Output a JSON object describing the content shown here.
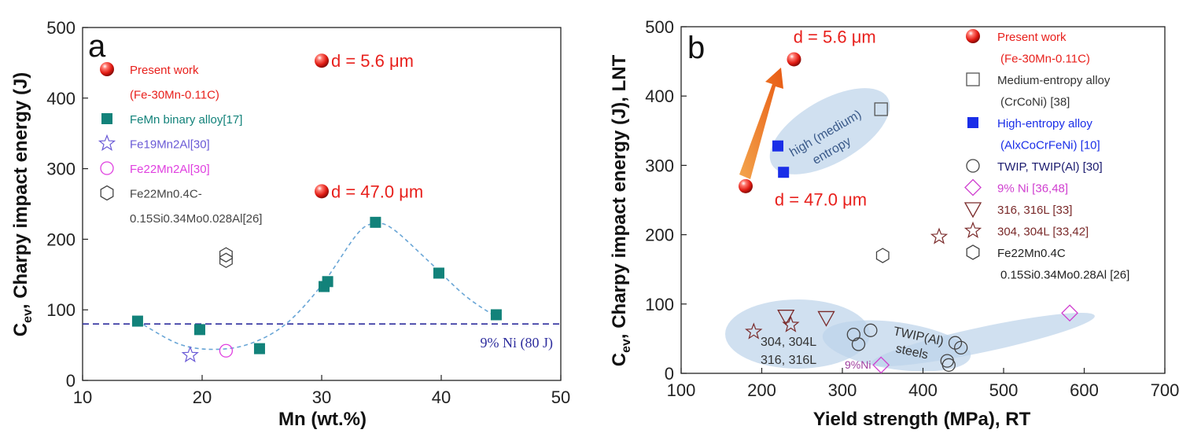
{
  "chart_data": [
    {
      "panel": "a",
      "type": "scatter",
      "xlabel": "Mn (wt.%)",
      "ylabel_main": "C",
      "ylabel_sub": "ev",
      "ylabel_rest": ", Charpy impact energy (J)",
      "xlim": [
        10,
        50
      ],
      "ylim": [
        0,
        500
      ],
      "xticks": [
        "10",
        "20",
        "30",
        "40",
        "50"
      ],
      "yticks": [
        "0",
        "100",
        "200",
        "300",
        "400",
        "500"
      ],
      "reference_line": {
        "y": 80,
        "label": "9% Ni (80 J)",
        "color": "#2e2e9e"
      },
      "fit_curve": [
        [
          14.6,
          84
        ],
        [
          18,
          52
        ],
        [
          21,
          44
        ],
        [
          24,
          52
        ],
        [
          27,
          80
        ],
        [
          30,
          135
        ],
        [
          33,
          208
        ],
        [
          34.5,
          222
        ],
        [
          36,
          214
        ],
        [
          39,
          168
        ],
        [
          42,
          120
        ],
        [
          44.6,
          90
        ]
      ],
      "series": [
        {
          "name": "Present work",
          "name2": "(Fe-30Mn-0.11C)",
          "marker": "sphere",
          "color": "#e8201c",
          "points": [
            [
              30,
              453
            ],
            [
              30,
              268
            ]
          ]
        },
        {
          "name": "FeMn binary alloy[17]",
          "marker": "square",
          "color": "#12827a",
          "points": [
            [
              14.6,
              84
            ],
            [
              19.8,
              72
            ],
            [
              24.8,
              45
            ],
            [
              30.2,
              133
            ],
            [
              30.5,
              140
            ],
            [
              34.5,
              224
            ],
            [
              39.8,
              152
            ],
            [
              44.6,
              93
            ]
          ]
        },
        {
          "name": "Fe19Mn2Al[30]",
          "marker": "star",
          "color": "#6a5ad6",
          "points": [
            [
              19,
              36
            ]
          ]
        },
        {
          "name": "Fe22Mn2Al[30]",
          "marker": "circle",
          "color": "#e040e0",
          "points": [
            [
              22,
              42
            ]
          ]
        },
        {
          "name": "Fe22Mn0.4C-",
          "name2": "0.15Si0.34Mo0.028Al[26]",
          "marker": "hexagon",
          "color": "#444444",
          "points": [
            [
              22,
              178
            ],
            [
              22,
              170
            ]
          ]
        }
      ],
      "annotations": [
        {
          "text": "d = 5.6 μm",
          "x": 30,
          "y": 453
        },
        {
          "text": "d = 47.0 μm",
          "x": 30,
          "y": 268
        }
      ]
    },
    {
      "panel": "b",
      "type": "scatter",
      "xlabel": "Yield strength (MPa), RT",
      "ylabel_main": "C",
      "ylabel_sub": "ev",
      "ylabel_rest": ", Charpy impact energy (J), LNT",
      "xlim": [
        100,
        700
      ],
      "ylim": [
        0,
        500
      ],
      "xticks": [
        "100",
        "200",
        "300",
        "400",
        "500",
        "600",
        "700"
      ],
      "yticks": [
        "0",
        "100",
        "200",
        "300",
        "400",
        "500"
      ],
      "series": [
        {
          "name": "Present work",
          "name2": "(Fe-30Mn-0.11C)",
          "marker": "sphere",
          "color": "#e8201c",
          "text_color": "#e8201c",
          "points": [
            [
              240,
              453
            ],
            [
              180,
              270
            ]
          ]
        },
        {
          "name": "Medium-entropy alloy",
          "name2": "(CrCoNi) [38]",
          "marker": "open-square",
          "color": "#555555",
          "text_color": "#333333",
          "points": [
            [
              348,
              381
            ]
          ]
        },
        {
          "name": "High-entropy alloy",
          "name2": "(AlxCoCrFeNi) [10]",
          "marker": "square",
          "color": "#1a2ee8",
          "text_color": "#1a2ee8",
          "points": [
            [
              220,
              328
            ],
            [
              227,
              290
            ]
          ]
        },
        {
          "name": "TWIP, TWIP(Al) [30]",
          "marker": "circle",
          "color": "#444444",
          "text_color": "#1a1a6e",
          "points": [
            [
              314,
              56
            ],
            [
              320,
              42
            ],
            [
              335,
              62
            ],
            [
              430,
              18
            ],
            [
              432,
              12
            ],
            [
              440,
              44
            ],
            [
              447,
              37
            ]
          ]
        },
        {
          "name": "9% Ni [36,48]",
          "marker": "diamond",
          "color": "#d040d0",
          "text_color": "#d040d0",
          "points": [
            [
              582,
              87
            ],
            [
              348,
              12
            ]
          ]
        },
        {
          "name": "316, 316L [33]",
          "marker": "triangle-down",
          "color": "#7a2a2a",
          "text_color": "#7a2a2a",
          "points": [
            [
              230,
              82
            ],
            [
              280,
              80
            ]
          ]
        },
        {
          "name": "304, 304L [33,42]",
          "marker": "star",
          "color": "#7a2a2a",
          "text_color": "#7a2a2a",
          "points": [
            [
              190,
              60
            ],
            [
              236,
              70
            ],
            [
              420,
              197
            ]
          ]
        },
        {
          "name": "Fe22Mn0.4C",
          "name2": "0.15Si0.34Mo0.28Al [26]",
          "marker": "hexagon",
          "color": "#444444",
          "text_color": "#222222",
          "points": [
            [
              350,
              170
            ]
          ]
        }
      ],
      "annotations": [
        {
          "text": "d = 5.6 μm",
          "x": 288,
          "y": 470
        },
        {
          "text": "d = 47.0 μm",
          "x": 255,
          "y": 235
        }
      ],
      "region_labels": [
        {
          "line1": "high (medium)",
          "line2": "entropy"
        },
        {
          "line1": "304, 304L",
          "line2": "316, 316L"
        },
        {
          "line1": "TWIP(Al)",
          "line2": "steels"
        },
        {
          "line1": "9%Ni",
          "line2": ""
        }
      ]
    }
  ]
}
